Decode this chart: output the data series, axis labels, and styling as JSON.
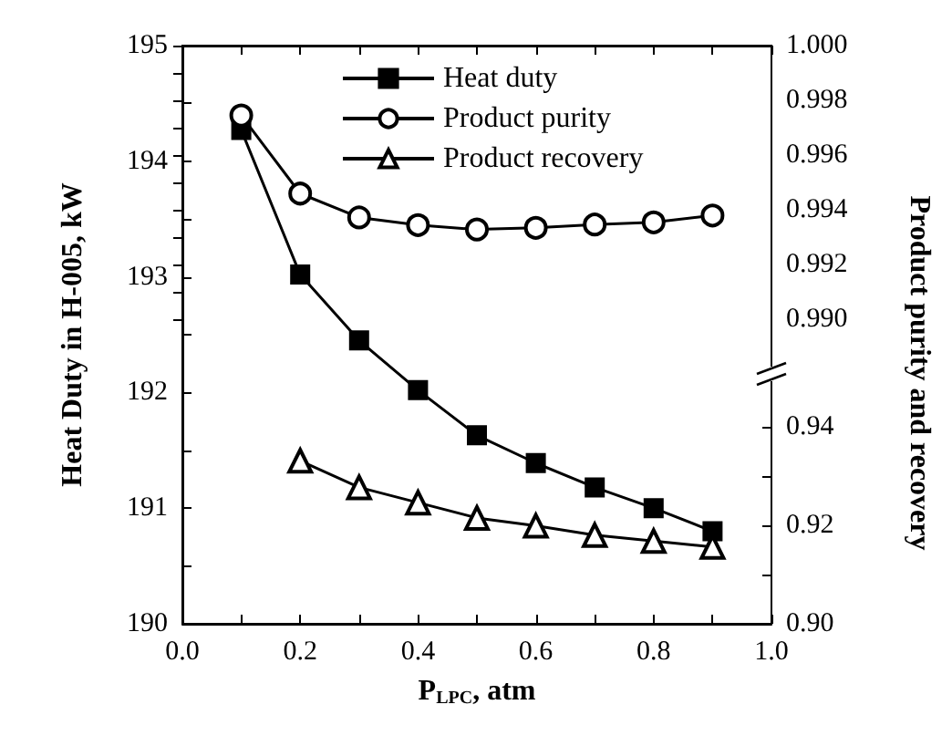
{
  "chart_data": {
    "type": "line",
    "xlabel": "P$_{LPC}$, atm",
    "ylabel": "Heat Duty in H-005, kW",
    "y2label": "Product purity and recovery",
    "x": [
      0.1,
      0.2,
      0.3,
      0.4,
      0.5,
      0.6,
      0.7,
      0.8,
      0.9
    ],
    "series": [
      {
        "name": "Heat duty",
        "color": "#000000",
        "marker": "square",
        "values": [
          194.27,
          193.02,
          192.45,
          192.02,
          191.63,
          191.39,
          191.18,
          191.0,
          190.8
        ]
      },
      {
        "name": "Product purity",
        "color": "#000000",
        "marker": "circle",
        "axis": "y2",
        "values": [
          0.99745,
          0.9946,
          0.99373,
          0.99345,
          0.99329,
          0.99335,
          0.99347,
          0.99355,
          0.9938
        ]
      },
      {
        "name": "Product recovery",
        "color": "#000000",
        "marker": "triangle",
        "axis": "y3",
        "x": [
          0.2,
          0.3,
          0.4,
          0.5,
          0.6,
          0.7,
          0.8,
          0.9
        ],
        "values": [
          0.9331,
          0.9277,
          0.9246,
          0.9215,
          0.9199,
          0.918,
          0.9168,
          0.9156
        ]
      }
    ],
    "xlim": [
      0,
      1
    ],
    "xticks": [
      {
        "value": 0,
        "label": "0.0"
      },
      {
        "value": 0.1,
        "label": null
      },
      {
        "value": 0.2,
        "label": "0.2"
      },
      {
        "value": 0.3,
        "label": null
      },
      {
        "value": 0.4,
        "label": "0.4"
      },
      {
        "value": 0.5,
        "label": null
      },
      {
        "value": 0.6,
        "label": "0.6"
      },
      {
        "value": 0.7,
        "label": null
      },
      {
        "value": 0.8,
        "label": "0.8"
      },
      {
        "value": 0.9,
        "label": null
      },
      {
        "value": 1,
        "label": "1.0"
      }
    ],
    "ylim": [
      190,
      195
    ],
    "yticks": [
      190,
      {
        "value": 190.5,
        "label": null
      },
      191,
      {
        "value": 191.5,
        "label": null
      },
      192,
      {
        "value": 192.5,
        "label": null
      },
      193,
      {
        "value": 193.5,
        "label": null
      },
      194,
      {
        "value": 194.5,
        "label": null
      },
      195
    ],
    "y2lim": [
      0.9789,
      1
    ],
    "y2ticks": [
      {
        "value": 0.99,
        "label": "0.990"
      },
      {
        "value": 0.991,
        "label": null
      },
      {
        "value": 0.992,
        "label": "0.992"
      },
      {
        "value": 0.993,
        "label": null
      },
      {
        "value": 0.994,
        "label": "0.994"
      },
      {
        "value": 0.995,
        "label": null
      },
      {
        "value": 0.996,
        "label": "0.996"
      },
      {
        "value": 0.997,
        "label": null
      },
      {
        "value": 0.998,
        "label": "0.998"
      },
      {
        "value": 0.999,
        "label": null
      },
      {
        "value": 1,
        "label": "1.000"
      }
    ],
    "y3lim": [
      0.9,
      1.0174
    ],
    "y3ticks": [
      {
        "value": 0.9,
        "label": "0.90"
      },
      {
        "value": 0.91,
        "label": null
      },
      {
        "value": 0.92,
        "label": "0.92"
      },
      {
        "value": 0.93,
        "label": null
      },
      {
        "value": 0.94,
        "label": "0.94"
      }
    ],
    "grid": false,
    "legend": "top right",
    "line_style": "solid"
  }
}
